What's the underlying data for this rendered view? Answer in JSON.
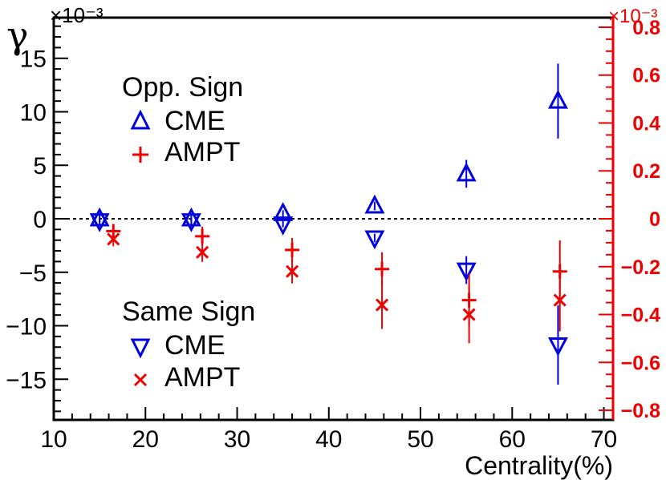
{
  "chart_data": {
    "type": "scatter",
    "title": "",
    "xlabel": "Centrality(%)",
    "ylabel": "γ",
    "xlim": [
      10,
      71
    ],
    "ylim": [
      -18.8,
      18.8
    ],
    "y2lim": [
      -0.84,
      0.84
    ],
    "y_multiplier": "×10⁻³",
    "y2_multiplier": "×10⁻³",
    "x_ticks": [
      "10",
      "20",
      "30",
      "40",
      "50",
      "60",
      "70"
    ],
    "y_ticks": [
      "15",
      "10",
      "5",
      "0",
      "−5",
      "−10",
      "−15"
    ],
    "y2_ticks": [
      "0.8",
      "0.6",
      "0.4",
      "0.2",
      "0",
      "−0.2",
      "−0.4",
      "−0.6",
      "−0.8"
    ],
    "colors": {
      "cme": "#0000dd",
      "ampt": "#ee0000",
      "axis": "#000000"
    },
    "legend": {
      "opp_heading": "Opp. Sign",
      "same_heading": "Same Sign",
      "cme_label": "CME",
      "ampt_label": "AMPT"
    },
    "series": [
      {
        "name": "CME Opp. Sign",
        "axis": "left",
        "marker": "triangle-up",
        "color": "#0000dd",
        "x": [
          15,
          25,
          35,
          45,
          55,
          65
        ],
        "y": [
          0.0,
          0.0,
          0.5,
          1.2,
          4.2,
          11.0
        ],
        "err": [
          0.3,
          0.3,
          0.3,
          0.4,
          1.3,
          3.5
        ]
      },
      {
        "name": "CME Same Sign",
        "axis": "left",
        "marker": "triangle-down",
        "color": "#0000dd",
        "x": [
          15,
          25,
          35,
          45,
          55,
          65
        ],
        "y": [
          -0.2,
          -0.2,
          -0.5,
          -1.8,
          -4.8,
          -11.8
        ],
        "err": [
          0.3,
          0.3,
          0.3,
          0.4,
          1.3,
          3.7
        ]
      },
      {
        "name": "AMPT Opp. Sign",
        "axis": "right",
        "marker": "plus",
        "color": "#ee0000",
        "x": [
          16.5,
          26.2,
          36.0,
          45.8,
          55.3,
          65.2
        ],
        "y": [
          -0.052,
          -0.073,
          -0.13,
          -0.21,
          -0.34,
          -0.22
        ],
        "err": [
          0.03,
          0.04,
          0.05,
          0.07,
          0.11,
          0.13
        ]
      },
      {
        "name": "AMPT Same Sign",
        "axis": "right",
        "marker": "cross",
        "color": "#ee0000",
        "x": [
          16.5,
          26.2,
          36.0,
          45.8,
          55.3,
          65.2
        ],
        "y": [
          -0.085,
          -0.14,
          -0.22,
          -0.36,
          -0.4,
          -0.34
        ],
        "err": [
          0.03,
          0.04,
          0.05,
          0.1,
          0.12,
          0.13
        ]
      }
    ]
  }
}
